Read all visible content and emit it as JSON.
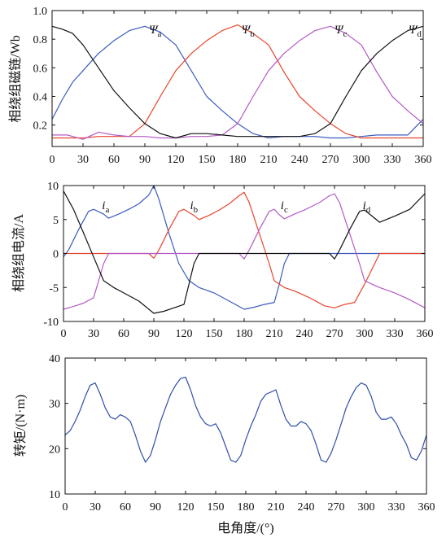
{
  "chart_data": [
    {
      "type": "line",
      "ylabel": "相绕组磁链/Wb",
      "xlim": [
        0,
        360
      ],
      "ylim": [
        0.05,
        1.0
      ],
      "xticks": [
        0,
        30,
        60,
        90,
        120,
        150,
        180,
        210,
        240,
        270,
        300,
        330,
        360
      ],
      "yticks": [
        0.2,
        0.4,
        0.6,
        0.8,
        1.0
      ],
      "ytick_labels": [
        "0.2",
        "0.4",
        "0.6",
        "0.8",
        "1.0"
      ],
      "grid": false,
      "annotations": [
        {
          "symbol": "Ψ",
          "sub": "a",
          "x": 100,
          "y": 0.84
        },
        {
          "symbol": "Ψ",
          "sub": "b",
          "x": 190,
          "y": 0.84
        },
        {
          "symbol": "Ψ",
          "sub": "c",
          "x": 280,
          "y": 0.84
        },
        {
          "symbol": "Ψ",
          "sub": "d",
          "x": 352,
          "y": 0.84
        }
      ],
      "series": [
        {
          "color": "#3b5bbf",
          "x": [
            0,
            10,
            20,
            30,
            45,
            60,
            75,
            90,
            105,
            120,
            135,
            150,
            165,
            180,
            195,
            210,
            225,
            240,
            255,
            270,
            285,
            300,
            315,
            330,
            345,
            360
          ],
          "y": [
            0.24,
            0.38,
            0.5,
            0.58,
            0.7,
            0.79,
            0.86,
            0.89,
            0.85,
            0.76,
            0.58,
            0.4,
            0.3,
            0.21,
            0.14,
            0.11,
            0.12,
            0.12,
            0.12,
            0.11,
            0.11,
            0.12,
            0.13,
            0.13,
            0.13,
            0.24
          ]
        },
        {
          "color": "#e8452c",
          "x": [
            0,
            15,
            30,
            45,
            60,
            75,
            90,
            105,
            120,
            135,
            150,
            165,
            180,
            195,
            210,
            225,
            240,
            255,
            270,
            285,
            300,
            315,
            330,
            345,
            360
          ],
          "y": [
            0.11,
            0.11,
            0.11,
            0.12,
            0.12,
            0.12,
            0.21,
            0.4,
            0.58,
            0.7,
            0.79,
            0.86,
            0.9,
            0.84,
            0.76,
            0.57,
            0.4,
            0.3,
            0.21,
            0.14,
            0.11,
            0.11,
            0.11,
            0.11,
            0.11
          ]
        },
        {
          "color": "#b45ac6",
          "x": [
            0,
            15,
            30,
            45,
            60,
            75,
            90,
            105,
            120,
            135,
            150,
            165,
            180,
            195,
            210,
            225,
            240,
            255,
            270,
            285,
            300,
            315,
            330,
            345,
            360
          ],
          "y": [
            0.13,
            0.13,
            0.1,
            0.15,
            0.13,
            0.12,
            0.12,
            0.11,
            0.11,
            0.12,
            0.12,
            0.13,
            0.21,
            0.4,
            0.58,
            0.7,
            0.79,
            0.86,
            0.89,
            0.84,
            0.76,
            0.57,
            0.4,
            0.3,
            0.21
          ]
        },
        {
          "color": "#111111",
          "x": [
            0,
            10,
            20,
            30,
            45,
            60,
            75,
            90,
            105,
            120,
            135,
            150,
            165,
            180,
            195,
            210,
            225,
            240,
            255,
            270,
            285,
            300,
            315,
            330,
            345,
            360
          ],
          "y": [
            0.89,
            0.87,
            0.84,
            0.76,
            0.6,
            0.44,
            0.32,
            0.21,
            0.14,
            0.11,
            0.14,
            0.14,
            0.13,
            0.12,
            0.12,
            0.12,
            0.12,
            0.12,
            0.14,
            0.21,
            0.4,
            0.58,
            0.7,
            0.79,
            0.86,
            0.89
          ]
        }
      ]
    },
    {
      "type": "line",
      "ylabel": "相绕组电流/A",
      "xlim": [
        0,
        360
      ],
      "ylim": [
        -10,
        10
      ],
      "xticks": [
        0,
        30,
        60,
        90,
        120,
        150,
        180,
        210,
        240,
        270,
        300,
        330,
        360
      ],
      "yticks": [
        -10,
        -5,
        0,
        5,
        10
      ],
      "grid": false,
      "annotations": [
        {
          "symbol": "i",
          "sub": "a",
          "x": 42,
          "y": 6.5
        },
        {
          "symbol": "i",
          "sub": "b",
          "x": 130,
          "y": 6.5
        },
        {
          "symbol": "i",
          "sub": "c",
          "x": 220,
          "y": 6.5
        },
        {
          "symbol": "i",
          "sub": "d",
          "x": 302,
          "y": 6.5
        }
      ],
      "series": [
        {
          "color": "#3b5bbf",
          "x": [
            0,
            5,
            15,
            25,
            30,
            40,
            45,
            55,
            65,
            75,
            85,
            90,
            95,
            105,
            115,
            125,
            135,
            150,
            165,
            180,
            190,
            200,
            210,
            215,
            220,
            225,
            240,
            270,
            300,
            315,
            330,
            345,
            360
          ],
          "y": [
            -0.5,
            0.5,
            3.5,
            6.2,
            6.5,
            5.8,
            5.2,
            5.8,
            6.5,
            7.3,
            8.6,
            10,
            8,
            3,
            -1.5,
            -4,
            -5,
            -5.8,
            -7,
            -8.2,
            -7.9,
            -7.5,
            -7.2,
            -4.5,
            -1.5,
            0,
            0,
            0,
            0,
            0,
            0,
            0,
            0
          ]
        },
        {
          "color": "#e8452c",
          "x": [
            0,
            30,
            60,
            85,
            90,
            95,
            105,
            115,
            120,
            130,
            135,
            145,
            155,
            165,
            175,
            180,
            185,
            195,
            205,
            210,
            220,
            230,
            245,
            260,
            270,
            280,
            290,
            300,
            315,
            330,
            345,
            360
          ],
          "y": [
            0,
            0,
            0,
            0,
            -0.7,
            0.5,
            3.5,
            6.2,
            6.5,
            5.6,
            5.0,
            5.6,
            6.4,
            7.3,
            8.5,
            9,
            7.5,
            3,
            -1.5,
            -4,
            -5,
            -5.5,
            -6.5,
            -7.7,
            -8,
            -7.5,
            -7.2,
            -4.5,
            0,
            0,
            0,
            0
          ]
        },
        {
          "color": "#b45ac6",
          "x": [
            0,
            10,
            20,
            30,
            35,
            40,
            45,
            60,
            90,
            120,
            150,
            175,
            180,
            185,
            195,
            205,
            210,
            215,
            220,
            230,
            240,
            255,
            265,
            270,
            275,
            285,
            295,
            300,
            310,
            315,
            330,
            345,
            360
          ],
          "y": [
            -8.2,
            -7.8,
            -7.3,
            -6.5,
            -4,
            -1.5,
            0,
            0,
            0,
            0,
            0,
            0,
            -0.8,
            0.5,
            3.5,
            6.2,
            6.5,
            5.7,
            5.1,
            5.8,
            6.4,
            7.5,
            8.5,
            8.8,
            7.5,
            3,
            -1.5,
            -4,
            -4.7,
            -5,
            -5.8,
            -6.8,
            -8
          ]
        },
        {
          "color": "#111111",
          "x": [
            0,
            10,
            20,
            30,
            40,
            50,
            60,
            75,
            90,
            100,
            110,
            120,
            125,
            130,
            135,
            150,
            180,
            210,
            240,
            265,
            270,
            275,
            285,
            295,
            300,
            310,
            315,
            330,
            345,
            360
          ],
          "y": [
            9.2,
            6.5,
            3,
            -0.5,
            -4,
            -5,
            -5.8,
            -7,
            -8.8,
            -8.5,
            -8,
            -7.5,
            -4.5,
            -1.5,
            0,
            0,
            0,
            0,
            0,
            0,
            -0.8,
            0.5,
            3.5,
            6.2,
            6.4,
            5.2,
            4.6,
            5.5,
            6.5,
            8.8
          ]
        }
      ]
    },
    {
      "type": "line",
      "ylabel": "转矩/(N·m)",
      "xlabel": "电角度/(°)",
      "xlim": [
        0,
        360
      ],
      "ylim": [
        10,
        40
      ],
      "xticks": [
        0,
        30,
        60,
        90,
        120,
        150,
        180,
        210,
        240,
        270,
        300,
        330,
        360
      ],
      "yticks": [
        10,
        20,
        30,
        40
      ],
      "grid": false,
      "series": [
        {
          "color": "#2f4fa8",
          "x": [
            0,
            5,
            10,
            15,
            20,
            25,
            30,
            35,
            40,
            45,
            50,
            55,
            60,
            65,
            70,
            75,
            80,
            85,
            90,
            95,
            100,
            105,
            110,
            115,
            120,
            125,
            130,
            135,
            140,
            145,
            150,
            155,
            160,
            165,
            170,
            175,
            180,
            185,
            190,
            195,
            200,
            205,
            210,
            215,
            220,
            225,
            230,
            235,
            240,
            245,
            250,
            255,
            260,
            265,
            270,
            275,
            280,
            285,
            290,
            295,
            300,
            305,
            310,
            315,
            320,
            325,
            330,
            335,
            340,
            345,
            350,
            355,
            360
          ],
          "y": [
            23,
            24,
            26,
            28.5,
            31.5,
            34,
            34.5,
            32,
            29,
            27,
            26.5,
            27.5,
            27,
            26,
            23,
            19.5,
            17,
            18.5,
            22,
            26,
            29,
            32,
            34,
            35.5,
            35.8,
            33,
            29.5,
            27,
            25.5,
            25,
            25.5,
            23.5,
            20.5,
            17.5,
            17,
            18.5,
            22,
            25,
            27.5,
            30.5,
            32,
            32.5,
            33,
            29.5,
            26.5,
            25,
            25,
            26,
            25.5,
            24,
            21,
            17.5,
            17,
            19,
            22,
            25.5,
            29,
            31.5,
            33.5,
            34.5,
            34,
            31.5,
            28,
            26.5,
            26.5,
            27,
            25.5,
            23,
            21,
            18,
            17.5,
            19.5,
            23
          ]
        }
      ]
    }
  ]
}
